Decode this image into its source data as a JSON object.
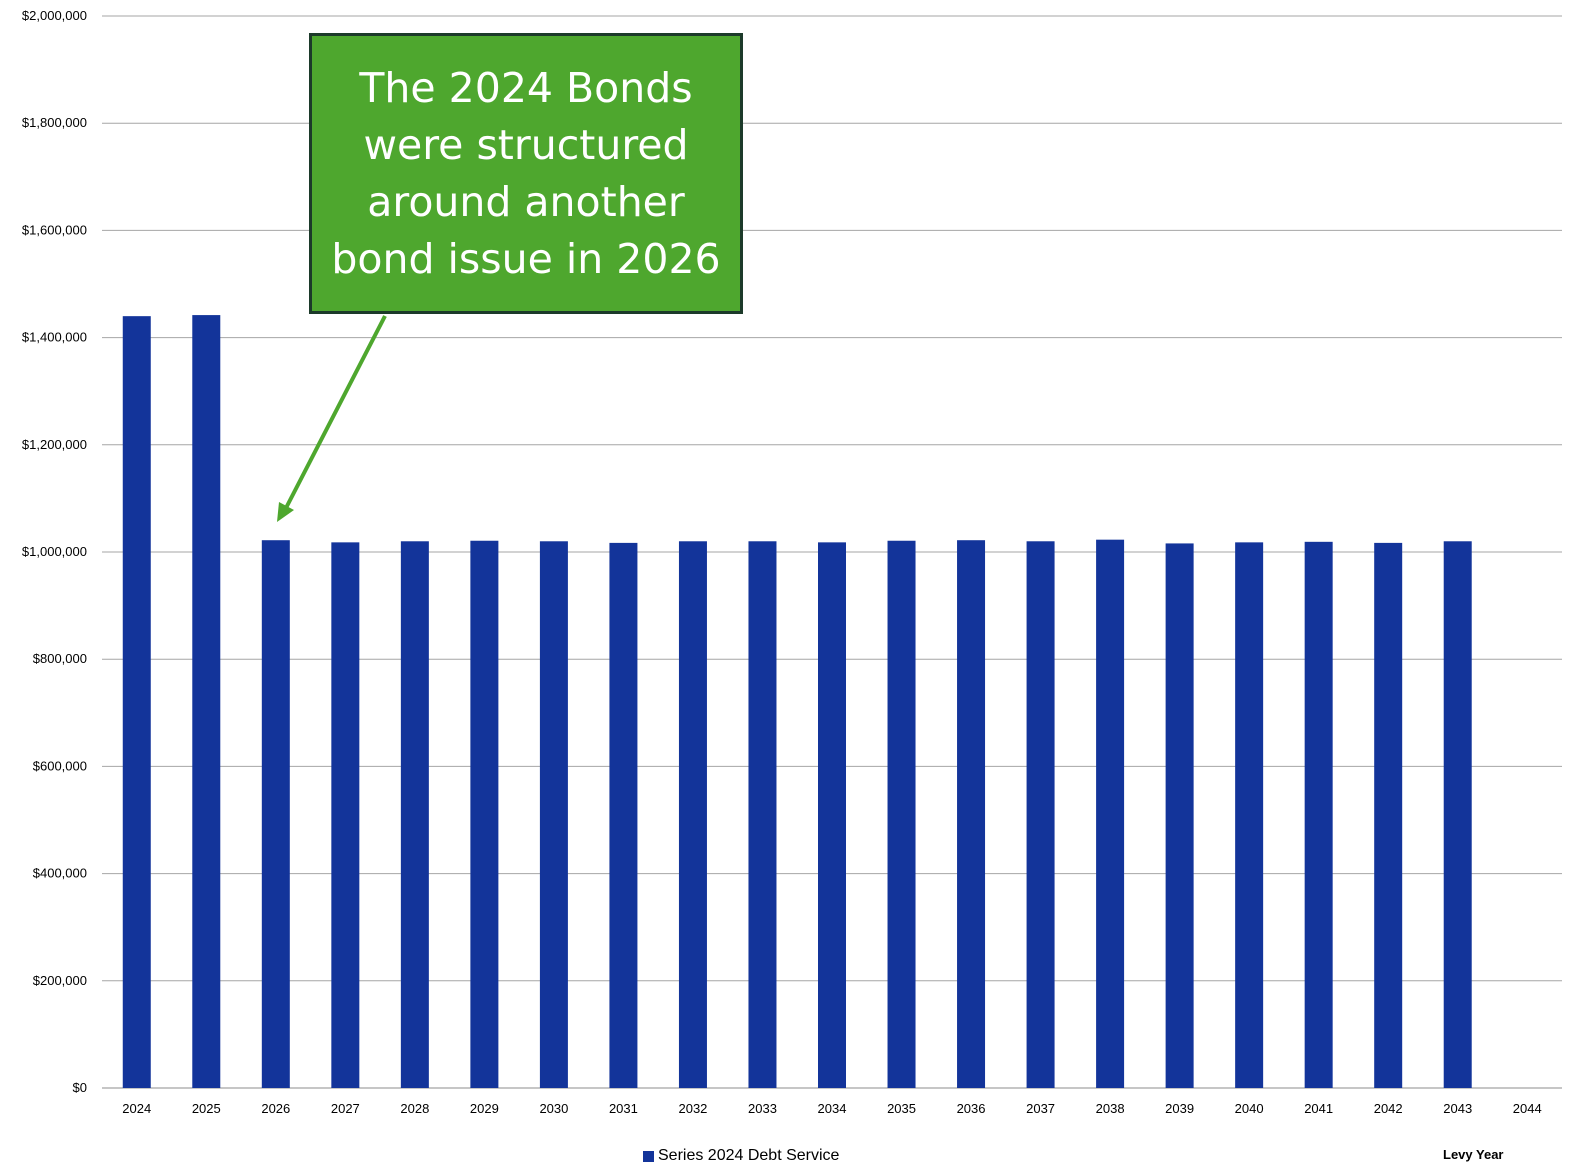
{
  "chart_data": {
    "type": "bar",
    "categories": [
      "2024",
      "2025",
      "2026",
      "2027",
      "2028",
      "2029",
      "2030",
      "2031",
      "2032",
      "2033",
      "2034",
      "2035",
      "2036",
      "2037",
      "2038",
      "2039",
      "2040",
      "2041",
      "2042",
      "2043",
      "2044"
    ],
    "series": [
      {
        "name": "Series 2024 Debt Service",
        "color": "#13349a",
        "values": [
          1440000,
          1442000,
          1022000,
          1018000,
          1020000,
          1021000,
          1020000,
          1017000,
          1020000,
          1020000,
          1018000,
          1021000,
          1022000,
          1020000,
          1023000,
          1016000,
          1018000,
          1019000,
          1017000,
          1020000,
          null
        ]
      }
    ],
    "ylim": [
      0,
      2000000
    ],
    "yticks": [
      0,
      200000,
      400000,
      600000,
      800000,
      1000000,
      1200000,
      1400000,
      1600000,
      1800000,
      2000000
    ],
    "ytick_labels": [
      "$0",
      "$200,000",
      "$400,000",
      "$600,000",
      "$800,000",
      "$1,000,000",
      "$1,200,000",
      "$1,400,000",
      "$1,600,000",
      "$1,800,000",
      "$2,000,000"
    ],
    "xlabel": "Levy Year",
    "grid": true,
    "legend_position": "bottom-center",
    "annotation": {
      "text": "The 2024 Bonds were structured around another bond issue in 2026",
      "points_to": "2026",
      "background": "#4ea72e",
      "text_color": "#ffffff"
    }
  }
}
